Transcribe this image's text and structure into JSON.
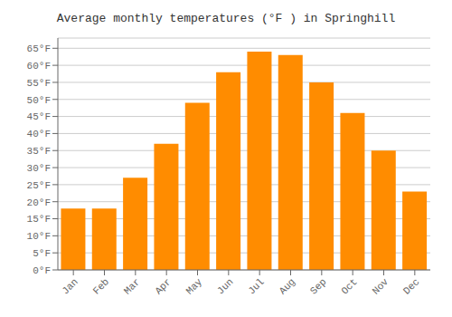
{
  "chart_data": {
    "type": "bar",
    "title": "Average monthly temperatures (°F ) in Springhill",
    "categories": [
      "Jan",
      "Feb",
      "Mar",
      "Apr",
      "May",
      "Jun",
      "Jul",
      "Aug",
      "Sep",
      "Oct",
      "Nov",
      "Dec"
    ],
    "values": [
      18,
      18,
      27,
      37,
      49,
      58,
      64,
      63,
      55,
      46,
      35,
      23
    ],
    "color": "#FF8C00",
    "ylim": [
      0,
      68
    ],
    "yticks": [
      {
        "value": 0,
        "label": "0°F"
      },
      {
        "value": 5,
        "label": "5°F"
      },
      {
        "value": 10,
        "label": "10°F"
      },
      {
        "value": 15,
        "label": "15°F"
      },
      {
        "value": 20,
        "label": "20°F"
      },
      {
        "value": 25,
        "label": "25°F"
      },
      {
        "value": 30,
        "label": "30°F"
      },
      {
        "value": 35,
        "label": "35°F"
      },
      {
        "value": 40,
        "label": "40°F"
      },
      {
        "value": 45,
        "label": "45°F"
      },
      {
        "value": 50,
        "label": "50°F"
      },
      {
        "value": 55,
        "label": "55°F"
      },
      {
        "value": 60,
        "label": "60°F"
      },
      {
        "value": 65,
        "label": "65°F"
      }
    ],
    "grid": true
  }
}
